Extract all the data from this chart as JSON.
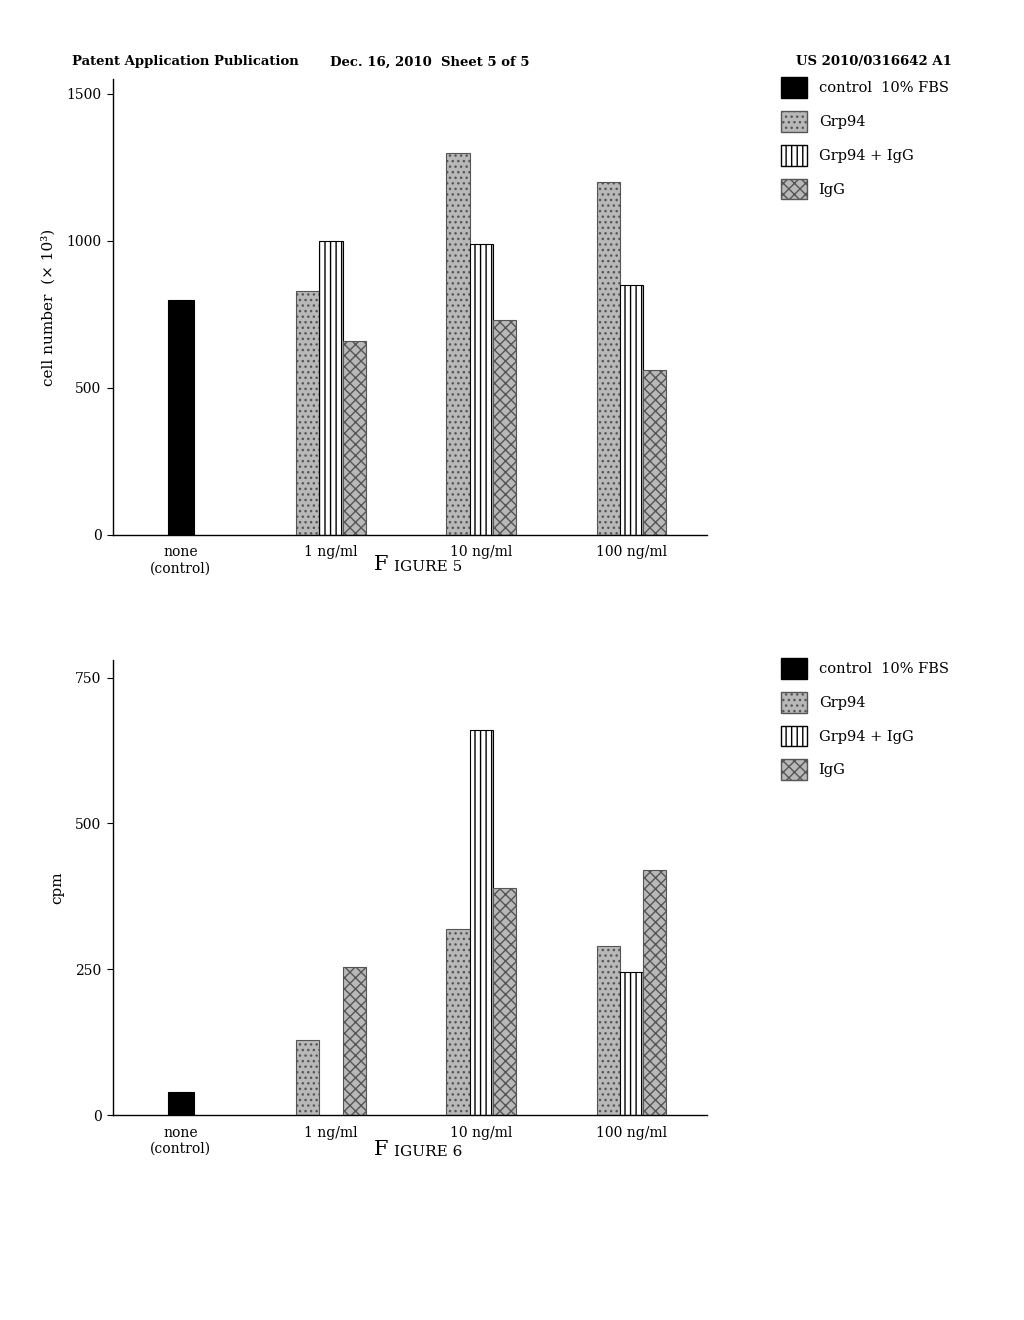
{
  "fig5": {
    "ylabel": "cell number  (× 10³)",
    "ylim": [
      0,
      1550
    ],
    "yticks": [
      0,
      500,
      1000,
      1500
    ],
    "ytick_labels": [
      "0",
      "500",
      "1000",
      "1500"
    ],
    "categories": [
      "none\n(control)",
      "1 ng/ml",
      "10 ng/ml",
      "100 ng/ml"
    ],
    "series": {
      "control_10FBS": [
        800,
        0,
        0,
        0
      ],
      "Grp94": [
        0,
        830,
        1300,
        1200
      ],
      "Grp94_IgG": [
        0,
        1000,
        990,
        850
      ],
      "IgG": [
        0,
        660,
        730,
        560
      ]
    }
  },
  "fig6": {
    "ylabel": "cpm",
    "ylim": [
      0,
      780
    ],
    "yticks": [
      0,
      250,
      500,
      750
    ],
    "ytick_labels": [
      "0",
      "250",
      "500",
      "750"
    ],
    "categories": [
      "none\n(control)",
      "1 ng/ml",
      "10 ng/ml",
      "100 ng/ml"
    ],
    "series": {
      "control_10FBS": [
        40,
        0,
        0,
        0
      ],
      "Grp94": [
        0,
        130,
        320,
        290
      ],
      "Grp94_IgG": [
        0,
        0,
        660,
        245
      ],
      "IgG": [
        0,
        255,
        390,
        420
      ]
    }
  },
  "legend_labels": [
    "control  10% FBS",
    "Grp94",
    "Grp94 + IgG",
    "IgG"
  ],
  "fig5_caption": "Figure 5",
  "fig6_caption": "Figure 6",
  "header_left": "Patent Application Publication",
  "header_mid": "Dec. 16, 2010  Sheet 5 of 5",
  "header_right": "US 2010/0316642 A1",
  "background_color": "#ffffff"
}
